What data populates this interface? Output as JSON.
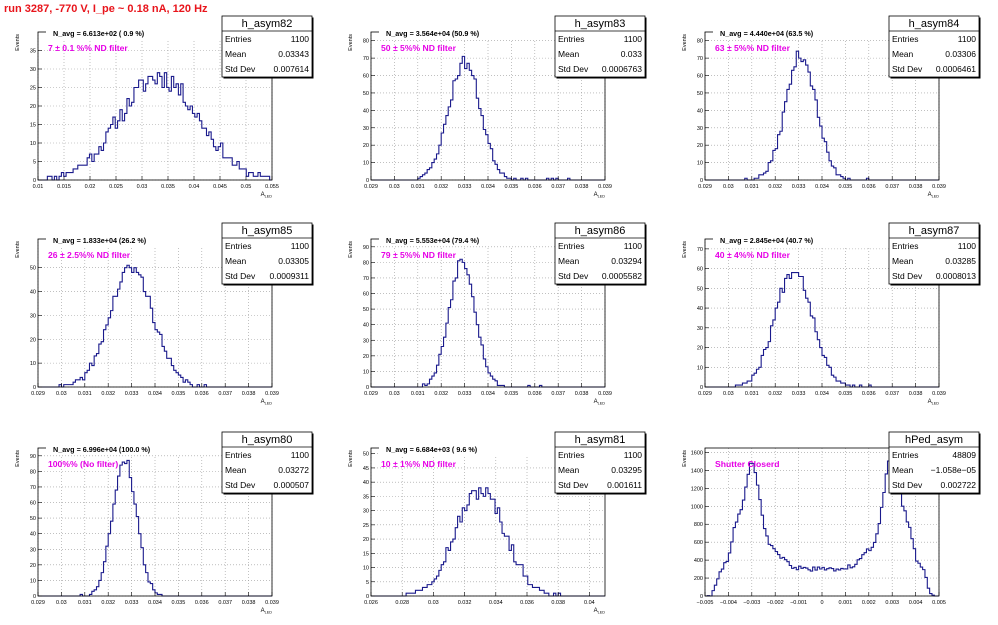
{
  "title": "run 3287,  -770 V, I_pe ~ 0.18 nA, 120 Hz",
  "colors": {
    "title": "#e8141b",
    "hist_line": "#1a1a8c",
    "annotation": "#e600e6",
    "grid": "#9a9a9a"
  },
  "chart_data": [
    {
      "type": "bar",
      "name": "h_asym82",
      "stats": {
        "entries_label": "Entries",
        "entries": "1100",
        "mean_label": "Mean",
        "mean": "0.03343",
        "std_label": "Std Dev",
        "std": "0.007614"
      },
      "navg": "N_avg = 6.613e+02 ( 0.9 %)",
      "annotation": "7 ± 0.1 %% ND filter",
      "ylabel": "Events",
      "xlabel": "A_LED",
      "xlim": [
        0.01,
        0.055
      ],
      "ylim": [
        0,
        40
      ],
      "xticks": [
        "0.01",
        "0.015",
        "0.02",
        "0.025",
        "0.03",
        "0.035",
        "0.04",
        "0.045",
        "0.05",
        "0.055"
      ],
      "yticks": [
        "0",
        "5",
        "10",
        "15",
        "20",
        "25",
        "30",
        "35"
      ],
      "dist": {
        "kind": "gauss",
        "mu": 0.0333,
        "sigma": 0.0076,
        "peak": 28,
        "noise": 6.0,
        "seed": 11
      }
    },
    {
      "type": "bar",
      "name": "h_asym83",
      "stats": {
        "entries_label": "Entries",
        "entries": "1100",
        "mean_label": "Mean",
        "mean": "0.033",
        "std_label": "Std Dev",
        "std": "0.0006763"
      },
      "navg": "N_avg = 3.564e+04 (50.9 %)",
      "annotation": "50 ± 5%% ND filter",
      "ylabel": "Events",
      "xlabel": "A_LED",
      "xlim": [
        0.029,
        0.039
      ],
      "ylim": [
        0,
        85
      ],
      "xticks": [
        "0.029",
        "0.03",
        "0.031",
        "0.032",
        "0.033",
        "0.034",
        "0.035",
        "0.036",
        "0.037",
        "0.038",
        "0.039"
      ],
      "yticks": [
        "0",
        "10",
        "20",
        "30",
        "40",
        "50",
        "60",
        "70",
        "80"
      ],
      "dist": {
        "kind": "gauss",
        "mu": 0.033,
        "sigma": 0.00068,
        "peak": 68,
        "noise": 8.0,
        "seed": 23
      }
    },
    {
      "type": "bar",
      "name": "h_asym84",
      "stats": {
        "entries_label": "Entries",
        "entries": "1100",
        "mean_label": "Mean",
        "mean": "0.03306",
        "std_label": "Std Dev",
        "std": "0.0006461"
      },
      "navg": "N_avg = 4.440e+04 (63.5 %)",
      "annotation": "63 ± 5%% ND filter",
      "ylabel": "Events",
      "xlabel": "A_LED",
      "xlim": [
        0.029,
        0.039
      ],
      "ylim": [
        0,
        85
      ],
      "xticks": [
        "0.029",
        "0.03",
        "0.031",
        "0.032",
        "0.033",
        "0.034",
        "0.035",
        "0.036",
        "0.037",
        "0.038",
        "0.039"
      ],
      "yticks": [
        "0",
        "10",
        "20",
        "30",
        "40",
        "50",
        "60",
        "70",
        "80"
      ],
      "dist": {
        "kind": "gauss",
        "mu": 0.0331,
        "sigma": 0.00065,
        "peak": 72,
        "noise": 8.0,
        "seed": 37
      }
    },
    {
      "type": "bar",
      "name": "h_asym85",
      "stats": {
        "entries_label": "Entries",
        "entries": "1100",
        "mean_label": "Mean",
        "mean": "0.03305",
        "std_label": "Std Dev",
        "std": "0.0009311"
      },
      "navg": "N_avg = 1.833e+04 (26.2 %)",
      "annotation": "26 ± 2.5%% ND filter",
      "ylabel": "Events",
      "xlabel": "A_LED",
      "xlim": [
        0.029,
        0.039
      ],
      "ylim": [
        0,
        62
      ],
      "xticks": [
        "0.029",
        "0.03",
        "0.031",
        "0.032",
        "0.033",
        "0.034",
        "0.035",
        "0.036",
        "0.037",
        "0.038",
        "0.039"
      ],
      "yticks": [
        "0",
        "10",
        "20",
        "30",
        "40",
        "50"
      ],
      "dist": {
        "kind": "gauss",
        "mu": 0.033,
        "sigma": 0.00093,
        "peak": 50,
        "noise": 6.0,
        "seed": 41
      }
    },
    {
      "type": "bar",
      "name": "h_asym86",
      "stats": {
        "entries_label": "Entries",
        "entries": "1100",
        "mean_label": "Mean",
        "mean": "0.03294",
        "std_label": "Std Dev",
        "std": "0.0005582"
      },
      "navg": "N_avg = 5.553e+04 (79.4 %)",
      "annotation": "79 ± 5%% ND filter",
      "ylabel": "Events",
      "xlabel": "A_LED",
      "xlim": [
        0.029,
        0.039
      ],
      "ylim": [
        0,
        95
      ],
      "xticks": [
        "0.029",
        "0.03",
        "0.031",
        "0.032",
        "0.033",
        "0.034",
        "0.035",
        "0.036",
        "0.037",
        "0.038",
        "0.039"
      ],
      "yticks": [
        "0",
        "10",
        "20",
        "30",
        "40",
        "50",
        "60",
        "70",
        "80",
        "90"
      ],
      "dist": {
        "kind": "gauss",
        "mu": 0.0329,
        "sigma": 0.00056,
        "peak": 82,
        "noise": 8.0,
        "seed": 53
      }
    },
    {
      "type": "bar",
      "name": "h_asym87",
      "stats": {
        "entries_label": "Entries",
        "entries": "1100",
        "mean_label": "Mean",
        "mean": "0.03285",
        "std_label": "Std Dev",
        "std": "0.0008013"
      },
      "navg": "N_avg = 2.845e+04 (40.7 %)",
      "annotation": "40 ± 4%% ND filter",
      "ylabel": "Events",
      "xlabel": "A_LED",
      "xlim": [
        0.029,
        0.039
      ],
      "ylim": [
        0,
        75
      ],
      "xticks": [
        "0.029",
        "0.03",
        "0.031",
        "0.032",
        "0.033",
        "0.034",
        "0.035",
        "0.036",
        "0.037",
        "0.038",
        "0.039"
      ],
      "yticks": [
        "0",
        "10",
        "20",
        "30",
        "40",
        "50",
        "60",
        "70"
      ],
      "dist": {
        "kind": "gauss",
        "mu": 0.0328,
        "sigma": 0.0008,
        "peak": 60,
        "noise": 7.0,
        "seed": 67
      }
    },
    {
      "type": "bar",
      "name": "h_asym80",
      "stats": {
        "entries_label": "Entries",
        "entries": "1100",
        "mean_label": "Mean",
        "mean": "0.03272",
        "std_label": "Std Dev",
        "std": "0.000507"
      },
      "navg": "N_avg = 6.996e+04 (100.0 %)",
      "annotation": "100%% (No filter)",
      "ylabel": "Events",
      "xlabel": "A_LED",
      "xlim": [
        0.029,
        0.039
      ],
      "ylim": [
        0,
        95
      ],
      "xticks": [
        "0.029",
        "0.03",
        "0.031",
        "0.032",
        "0.033",
        "0.034",
        "0.035",
        "0.036",
        "0.037",
        "0.038",
        "0.039"
      ],
      "yticks": [
        "0",
        "10",
        "20",
        "30",
        "40",
        "50",
        "60",
        "70",
        "80",
        "90"
      ],
      "dist": {
        "kind": "gauss",
        "mu": 0.0327,
        "sigma": 0.00051,
        "peak": 88,
        "noise": 7.0,
        "seed": 79
      }
    },
    {
      "type": "bar",
      "name": "h_asym81",
      "stats": {
        "entries_label": "Entries",
        "entries": "1100",
        "mean_label": "Mean",
        "mean": "0.03295",
        "std_label": "Std Dev",
        "std": "0.001611"
      },
      "navg": "N_avg = 6.684e+03 ( 9.6 %)",
      "annotation": "10 ± 1%% ND filter",
      "ylabel": "Events",
      "xlabel": "A_LED",
      "xlim": [
        0.026,
        0.041
      ],
      "ylim": [
        0,
        52
      ],
      "xticks": [
        "0.026",
        "0.028",
        "0.03",
        "0.032",
        "0.034",
        "0.036",
        "0.038",
        "0.04"
      ],
      "yticks": [
        "0",
        "5",
        "10",
        "15",
        "20",
        "25",
        "30",
        "35",
        "40",
        "45",
        "50"
      ],
      "dist": {
        "kind": "gauss",
        "mu": 0.033,
        "sigma": 0.0016,
        "peak": 37,
        "noise": 6.0,
        "seed": 97
      }
    },
    {
      "type": "bar",
      "name": "hPed_asym",
      "stats": {
        "entries_label": "Entries",
        "entries": "48809",
        "mean_label": "Mean",
        "mean": "−1.058e−05",
        "std_label": "Std Dev",
        "std": "0.002722"
      },
      "navg": "",
      "annotation": "Shutter Closerd",
      "ylabel": "Events",
      "xlabel": "",
      "xlim": [
        -0.005,
        0.005
      ],
      "ylim": [
        0,
        1650
      ],
      "xticks": [
        "−0.005",
        "−0.004",
        "−0.003",
        "−0.002",
        "−0.001",
        "0",
        "0.001",
        "0.002",
        "0.003",
        "0.004",
        "0.005"
      ],
      "yticks": [
        "0",
        "200",
        "400",
        "600",
        "800",
        "1000",
        "1200",
        "1400",
        "1600"
      ],
      "dist": {
        "kind": "ped",
        "seed": 113
      }
    }
  ]
}
